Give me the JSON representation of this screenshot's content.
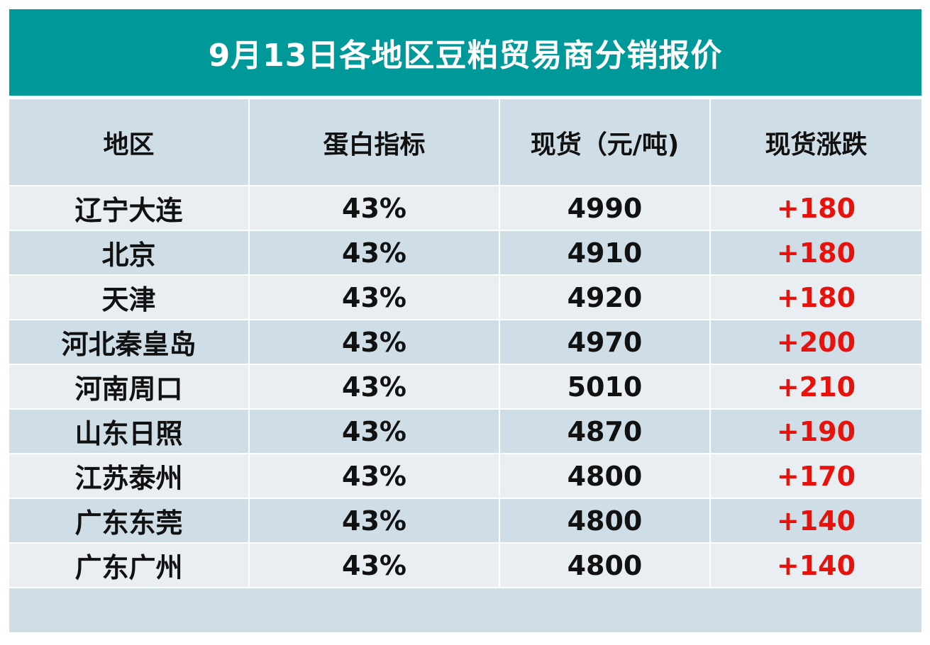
{
  "title": "9月13日各地区豆粕贸易商分销报价",
  "headers": [
    "地区",
    "蛋白指标",
    "现货（元/吨)",
    "现货涨跌"
  ],
  "rows": [
    {
      "region": "辽宁大连",
      "protein": "43%",
      "price": "4990",
      "change": "+180"
    },
    {
      "region": "北京",
      "protein": "43%",
      "price": "4910",
      "change": "+180"
    },
    {
      "region": "天津",
      "protein": "43%",
      "price": "4920",
      "change": "+180"
    },
    {
      "region": "河北秦皇岛",
      "protein": "43%",
      "price": "4970",
      "change": "+200"
    },
    {
      "region": "河南周口",
      "protein": "43%",
      "price": "5010",
      "change": "+210"
    },
    {
      "region": "山东日照",
      "protein": "43%",
      "price": "4870",
      "change": "+190"
    },
    {
      "region": "江苏泰州",
      "protein": "43%",
      "price": "4800",
      "change": "+170"
    },
    {
      "region": "广东东莞",
      "protein": "43%",
      "price": "4800",
      "change": "+140"
    },
    {
      "region": "广东广州",
      "protein": "43%",
      "price": "4800",
      "change": "+140"
    }
  ],
  "colors": {
    "title_bg": "#009999",
    "header_bg": "#cfdee6",
    "row_light": "#e8eef2",
    "row_dark": "#cfdee6",
    "change_text": "#e8120c"
  }
}
